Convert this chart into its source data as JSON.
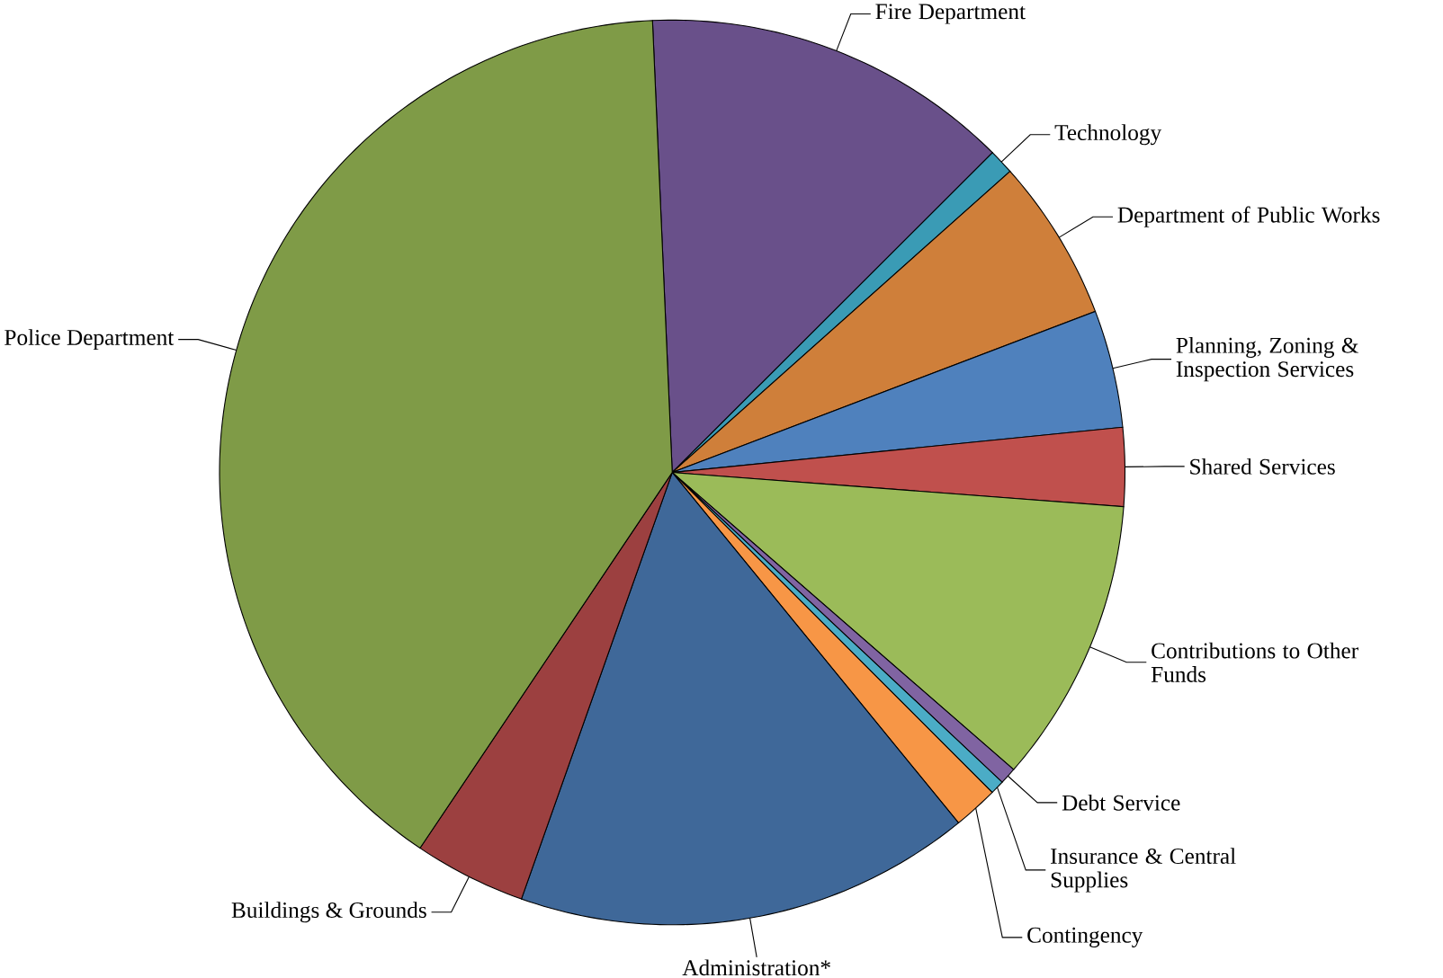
{
  "chart_data": {
    "type": "pie",
    "categories": [
      "Fire Department",
      "Technology",
      "Department of Public Works",
      "Planning, Zoning & Inspection Services",
      "Shared Services",
      "Contributions to Other Funds",
      "Debt Service",
      "Insurance & Central Supplies",
      "Contingency",
      "Administration*",
      "Buildings & Grounds",
      "Police Department"
    ],
    "values": [
      13.2,
      0.9,
      5.8,
      4.2,
      2.8,
      10.2,
      0.6,
      0.5,
      1.6,
      16.3,
      4.0,
      39.9
    ],
    "colors": [
      "#69508a",
      "#3a9bb5",
      "#cf7f3a",
      "#4f81bd",
      "#c0504d",
      "#9bbb59",
      "#8064a2",
      "#4bacc6",
      "#f79646",
      "#3f6899",
      "#9c4040",
      "#7f9b47"
    ]
  }
}
